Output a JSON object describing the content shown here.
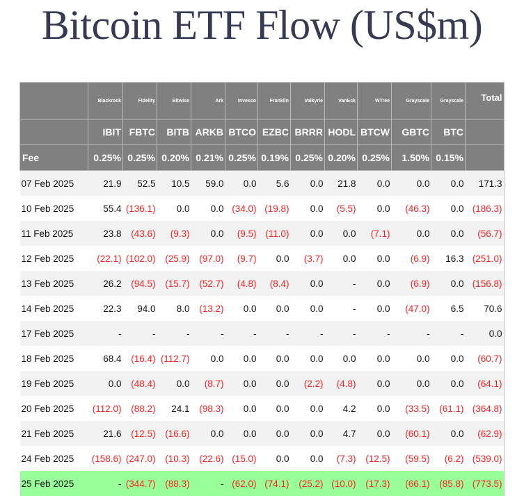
{
  "title": "Bitcoin ETF Flow (US$m)",
  "issuers": [
    "Blackrock",
    "Fidelity",
    "Bitwise",
    "Ark",
    "Invesco",
    "Franklin",
    "Valkyrie",
    "VanEck",
    "WTree",
    "Grayscale",
    "Grayscale"
  ],
  "total_label": "Total",
  "tickers": [
    "IBIT",
    "FBTC",
    "BITB",
    "ARKB",
    "BTCO",
    "EZBC",
    "BRRR",
    "HODL",
    "BTCW",
    "GBTC",
    "BTC"
  ],
  "fee_label": "Fee",
  "fees": [
    "0.25%",
    "0.25%",
    "0.20%",
    "0.21%",
    "0.25%",
    "0.19%",
    "0.25%",
    "0.20%",
    "0.25%",
    "1.50%",
    "0.15%"
  ],
  "rows": [
    {
      "date": "07 Feb 2025",
      "values": [
        "21.9",
        "52.5",
        "10.5",
        "59.0",
        "0.0",
        "5.6",
        "0.0",
        "21.8",
        "0.0",
        "0.0",
        "0.0",
        "171.3"
      ]
    },
    {
      "date": "10 Feb 2025",
      "values": [
        "55.4",
        "(136.1)",
        "0.0",
        "0.0",
        "(34.0)",
        "(19.8)",
        "0.0",
        "(5.5)",
        "0.0",
        "(46.3)",
        "0.0",
        "(186.3)"
      ]
    },
    {
      "date": "11 Feb 2025",
      "values": [
        "23.8",
        "(43.6)",
        "(9.3)",
        "0.0",
        "(9.5)",
        "(11.0)",
        "0.0",
        "0.0",
        "(7.1)",
        "0.0",
        "0.0",
        "(56.7)"
      ]
    },
    {
      "date": "12 Feb 2025",
      "values": [
        "(22.1)",
        "(102.0)",
        "(25.9)",
        "(97.0)",
        "(9.7)",
        "0.0",
        "(3.7)",
        "0.0",
        "0.0",
        "(6.9)",
        "16.3",
        "(251.0)"
      ]
    },
    {
      "date": "13 Feb 2025",
      "values": [
        "26.2",
        "(94.5)",
        "(15.7)",
        "(52.7)",
        "(4.8)",
        "(8.4)",
        "0.0",
        "-",
        "0.0",
        "(6.9)",
        "0.0",
        "(156.8)"
      ]
    },
    {
      "date": "14 Feb 2025",
      "values": [
        "22.3",
        "94.0",
        "8.0",
        "(13.2)",
        "0.0",
        "0.0",
        "0.0",
        "-",
        "0.0",
        "(47.0)",
        "6.5",
        "70.6"
      ]
    },
    {
      "date": "17 Feb 2025",
      "values": [
        "-",
        "-",
        "-",
        "-",
        "-",
        "-",
        "-",
        "-",
        "-",
        "-",
        "-",
        "0.0"
      ]
    },
    {
      "date": "18 Feb 2025",
      "values": [
        "68.4",
        "(16.4)",
        "(112.7)",
        "0.0",
        "0.0",
        "0.0",
        "0.0",
        "0.0",
        "0.0",
        "0.0",
        "0.0",
        "(60.7)"
      ]
    },
    {
      "date": "19 Feb 2025",
      "values": [
        "0.0",
        "(48.4)",
        "0.0",
        "(8.7)",
        "0.0",
        "0.0",
        "(2.2)",
        "(4.8)",
        "0.0",
        "0.0",
        "0.0",
        "(64.1)"
      ]
    },
    {
      "date": "20 Feb 2025",
      "values": [
        "(112.0)",
        "(88.2)",
        "24.1",
        "(98.3)",
        "0.0",
        "0.0",
        "0.0",
        "4.2",
        "0.0",
        "(33.5)",
        "(61.1)",
        "(364.8)"
      ]
    },
    {
      "date": "21 Feb 2025",
      "values": [
        "21.6",
        "(12.5)",
        "(16.6)",
        "0.0",
        "0.0",
        "0.0",
        "0.0",
        "4.7",
        "0.0",
        "(60.1)",
        "0.0",
        "(62.9)"
      ]
    },
    {
      "date": "24 Feb 2025",
      "values": [
        "(158.6)",
        "(247.0)",
        "(10.3)",
        "(22.6)",
        "(15.0)",
        "0.0",
        "0.0",
        "(7.3)",
        "(12.5)",
        "(59.5)",
        "(6.2)",
        "(539.0)"
      ]
    },
    {
      "date": "25 Feb 2025",
      "values": [
        "-",
        "(344.7)",
        "(88.3)",
        "-",
        "(62.0)",
        "(74.1)",
        "(25.2)",
        "(10.0)",
        "(17.3)",
        "(66.1)",
        "(85.8)",
        "(773.5)"
      ],
      "highlight": true
    }
  ]
}
